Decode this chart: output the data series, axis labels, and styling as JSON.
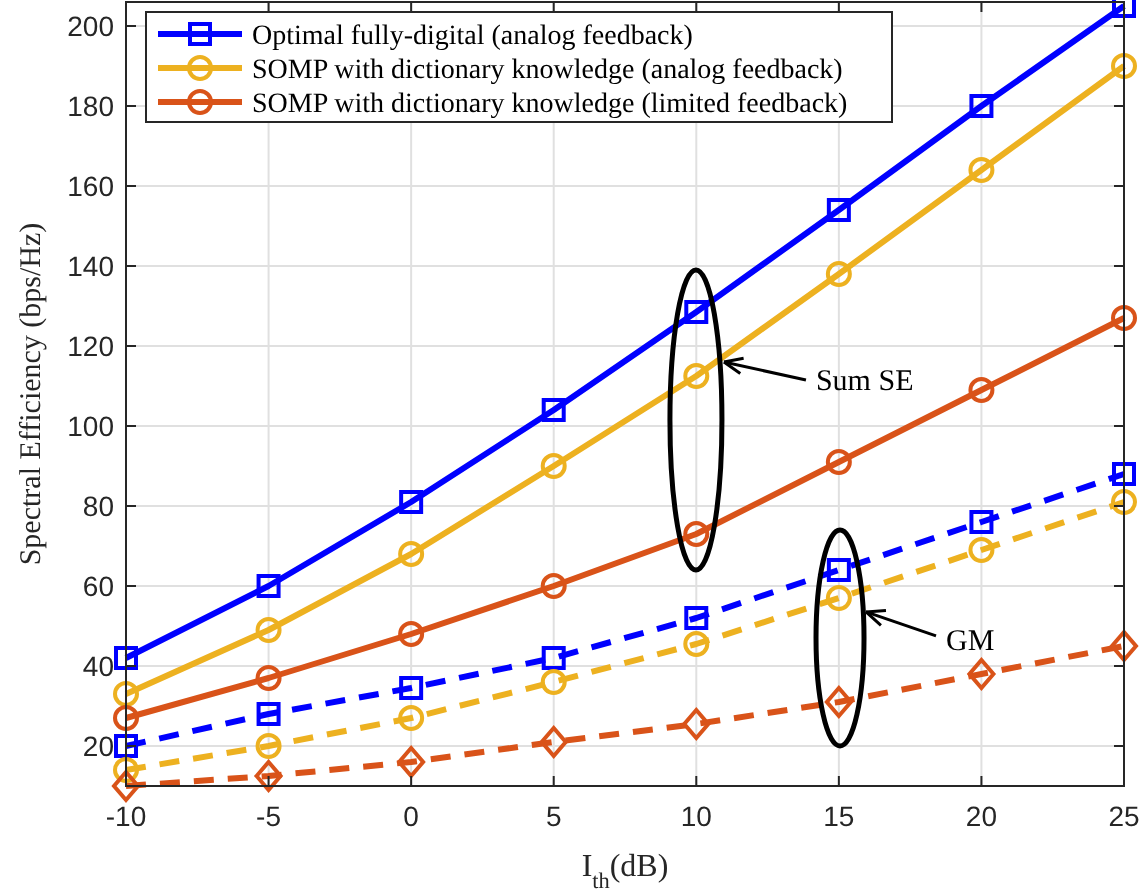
{
  "chart_data": {
    "type": "line",
    "xlabel": "I$_{th}$(dB)",
    "ylabel": "Spectral Efficiency (bps/Hz)",
    "x": [
      -10,
      -5,
      0,
      5,
      10,
      15,
      20,
      25
    ],
    "xlim": [
      -10,
      25
    ],
    "xticks": [
      -10,
      -5,
      0,
      5,
      10,
      15,
      20,
      25
    ],
    "ylim": [
      10,
      206
    ],
    "yticks": [
      20,
      40,
      60,
      80,
      100,
      120,
      140,
      160,
      180,
      200
    ],
    "grid": true,
    "legend": "top left",
    "annotations": [
      {
        "text": "Sum SE",
        "x": 10.97,
        "y": 116
      },
      "GM"
    ],
    "series": [
      {
        "name": "Optimal fully-digital (analog feedback)",
        "color": "#0000ff",
        "marker": "square",
        "line_style": "solid",
        "values": [
          42,
          60,
          81,
          104,
          128.5,
          154,
          180,
          205
        ]
      },
      {
        "name": "SOMP with dictionary knowledge (analog feedback)",
        "color": "#edb120",
        "marker": "circle",
        "line_style": "solid",
        "values": [
          33,
          49,
          68,
          90,
          112.5,
          138,
          164,
          190
        ]
      },
      {
        "name": "SOMP with dictionary knowledge (limited feedback)",
        "color": "#d95319",
        "marker": "circle",
        "line_style": "solid",
        "values": [
          27,
          37,
          48,
          60,
          73,
          91,
          109,
          127
        ]
      },
      {
        "color": "#0000ff",
        "marker": "square",
        "line_style": "dashed",
        "values": [
          20,
          28,
          34.5,
          42,
          52,
          64,
          76,
          88
        ]
      },
      {
        "color": "#edb120",
        "marker": "circle",
        "line_style": "dashed",
        "values": [
          14,
          20,
          27,
          36,
          45.5,
          57,
          69,
          81
        ]
      },
      {
        "color": "#d95319",
        "marker": "diamond",
        "line_style": "dashed",
        "values": [
          10,
          12.5,
          16,
          21,
          25.5,
          31,
          38,
          45
        ]
      }
    ]
  }
}
